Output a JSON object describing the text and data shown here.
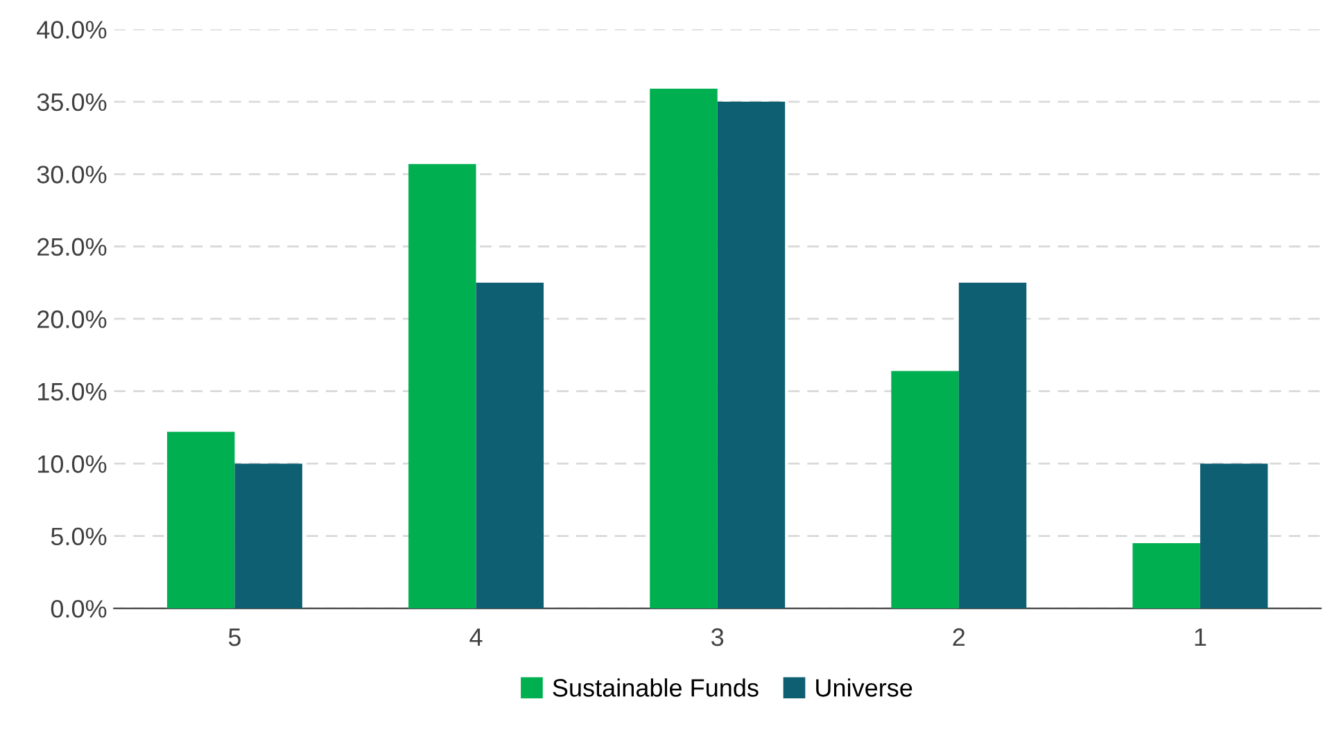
{
  "chart_data": {
    "type": "bar",
    "categories": [
      "5",
      "4",
      "3",
      "2",
      "1"
    ],
    "series": [
      {
        "name": "Sustainable Funds",
        "color": "#00b050",
        "values": [
          12.2,
          30.7,
          35.9,
          16.4,
          4.5
        ]
      },
      {
        "name": "Universe",
        "color": "#0f5f73",
        "values": [
          10.0,
          22.5,
          35.0,
          22.5,
          10.0
        ]
      }
    ],
    "ylim": [
      0,
      40
    ],
    "yticks": [
      {
        "value": 0,
        "label": "0.0%"
      },
      {
        "value": 5,
        "label": "5.0%"
      },
      {
        "value": 10,
        "label": "10.0%"
      },
      {
        "value": 15,
        "label": "15.0%"
      },
      {
        "value": 20,
        "label": "20.0%"
      },
      {
        "value": 25,
        "label": "25.0%"
      },
      {
        "value": 30,
        "label": "30.0%"
      },
      {
        "value": 35,
        "label": "35.0%"
      },
      {
        "value": 40,
        "label": "40.0%"
      }
    ],
    "grid": "y",
    "legend": "bottom"
  }
}
